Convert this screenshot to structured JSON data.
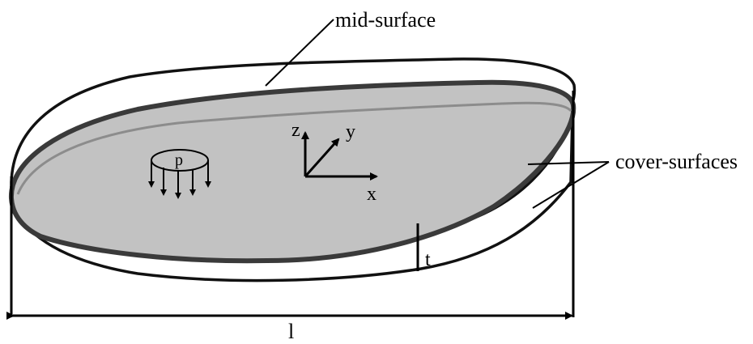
{
  "labels": {
    "mid_surface": "mid-surface",
    "cover_surfaces": "cover-surfaces",
    "thickness": "t",
    "length": "l",
    "pressure": "p",
    "axis_x": "x",
    "axis_y": "y",
    "axis_z": "z"
  },
  "colors": {
    "mid_surface_fill": "#c2c2c2",
    "mid_surface_edge": "#3a3a3a",
    "cover_outline": "#111111",
    "inner_curve": "#8c8c8c",
    "background": "#ffffff"
  }
}
